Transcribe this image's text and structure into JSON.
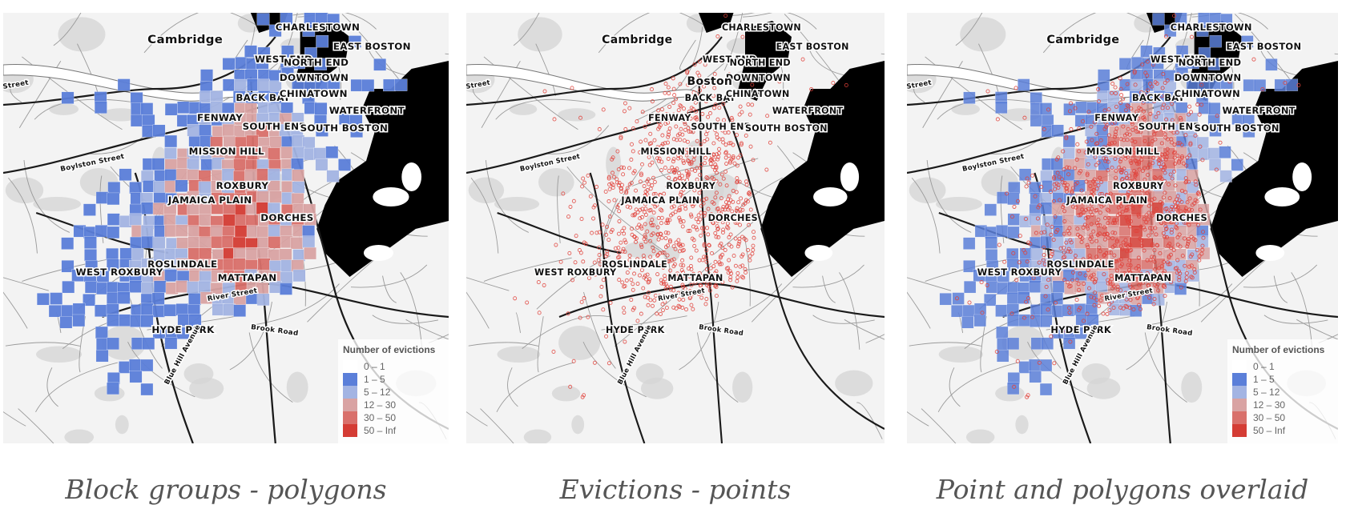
{
  "panels": [
    {
      "caption": "Block groups - polygons",
      "mode": "polygons",
      "legend": true
    },
    {
      "caption": "Evictions - points",
      "mode": "points",
      "legend": false
    },
    {
      "caption": "Point and polygons overlaid",
      "mode": "overlay",
      "legend": true
    }
  ],
  "map_labels": {
    "cambridge": "Cambridge",
    "boston": "Boston",
    "charlestown": "CHARLESTOWN",
    "east_boston": "EAST BOSTON",
    "west_end": "WEST END",
    "north_end": "NORTH END",
    "downtown": "DOWNTOWN",
    "chinatown": "CHINATOWN",
    "back_bay": "BACK BAY",
    "waterfront": "WATERFRONT",
    "fenway": "FENWAY",
    "south_end": "SOUTH END",
    "south_boston": "SOUTH BOSTON",
    "mission_hill": "MISSION HILL",
    "roxbury": "ROXBURY",
    "jamaica_plain": "JAMAICA PLAIN",
    "dorchester": "DORCHES",
    "roslindale": "ROSLINDALE",
    "west_roxbury": "WEST ROXBURY",
    "mattapan": "MATTAPAN",
    "hyde_park": "HYDE PARK",
    "boylston_street": "Boylston Street",
    "river_street": "River Street",
    "brook_road": "Brook Road",
    "blue_hill_avenue": "Blue Hill Avenue",
    "street": "Street"
  },
  "legend": {
    "title": "Number of evictions",
    "classes": [
      {
        "label": "0 – 1",
        "color": "#ffffff"
      },
      {
        "label": "1 – 5",
        "color": "#5b7fd9"
      },
      {
        "label": "5 – 12",
        "color": "#a3b4e3"
      },
      {
        "label": "12 – 30",
        "color": "#d9a3a3"
      },
      {
        "label": "30 – 50",
        "color": "#d9706b"
      },
      {
        "label": "50 – Inf",
        "color": "#d43c34"
      }
    ]
  },
  "colors": {
    "water": "#000000",
    "point": "#e0413a",
    "road_major": "#1a1a1a",
    "road_minor": "#9a9a9a"
  }
}
